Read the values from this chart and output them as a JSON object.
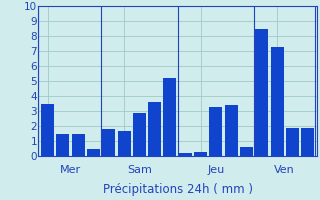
{
  "bar_values": [
    3.5,
    1.5,
    1.5,
    0.5,
    1.8,
    1.7,
    2.9,
    3.6,
    5.2,
    0.2,
    0.25,
    3.3,
    3.4,
    0.6,
    8.5,
    7.3,
    1.85,
    1.85
  ],
  "bar_color": "#1144cc",
  "day_labels": [
    "Mer",
    "Sam",
    "Jeu",
    "Ven"
  ],
  "xlabel": "Précipitations 24h ( mm )",
  "ylim": [
    0,
    10
  ],
  "yticks": [
    0,
    1,
    2,
    3,
    4,
    5,
    6,
    7,
    8,
    9,
    10
  ],
  "bg_color": "#d0ecec",
  "grid_color": "#a0c8c8",
  "axis_color": "#2244bb",
  "text_color": "#2244bb",
  "tick_fontsize": 7.5,
  "xlabel_fontsize": 8.5,
  "day_label_fontsize": 8
}
